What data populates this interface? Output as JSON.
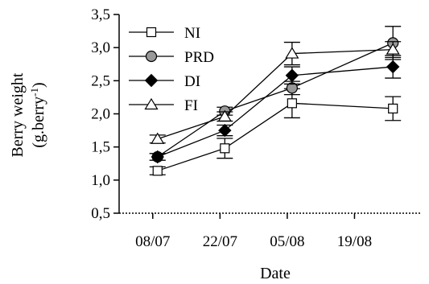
{
  "chart_data": {
    "type": "line",
    "title": "",
    "xlabel": "Date",
    "ylabel_line1": "Berry weight",
    "ylabel_line2_base": "(g.berry",
    "ylabel_line2_sup": "-1",
    "ylabel_line2_end": ")",
    "ylim": [
      0.5,
      3.5
    ],
    "y_ticks": [
      "0,5",
      "1,0",
      "1,5",
      "2,0",
      "2,5",
      "3,0",
      "3,5"
    ],
    "x_ticks": [
      "08/07",
      "22/07",
      "05/08",
      "19/08"
    ],
    "x_positions": [
      "09/07",
      "23/07",
      "06/08",
      "27/08"
    ],
    "legend_position": "top-left",
    "series": [
      {
        "name": "NI",
        "marker": "square-open",
        "color": "#000000",
        "values": [
          1.14,
          1.48,
          2.16,
          2.08
        ],
        "errors": [
          0.06,
          0.15,
          0.22,
          0.18
        ]
      },
      {
        "name": "PRD",
        "marker": "circle-gray",
        "color": "#999999",
        "values": [
          1.35,
          2.04,
          2.39,
          3.07
        ],
        "errors": [
          0.05,
          0.06,
          0.1,
          0.25
        ]
      },
      {
        "name": "DI",
        "marker": "diamond-filled",
        "color": "#000000",
        "values": [
          1.35,
          1.75,
          2.58,
          2.71
        ],
        "errors": [
          0.05,
          0.08,
          0.13,
          0.17
        ]
      },
      {
        "name": "FI",
        "marker": "triangle-open",
        "color": "#000000",
        "values": [
          1.62,
          1.96,
          2.91,
          2.97
        ],
        "errors": [
          0.06,
          0.07,
          0.17,
          0.12
        ]
      }
    ]
  }
}
